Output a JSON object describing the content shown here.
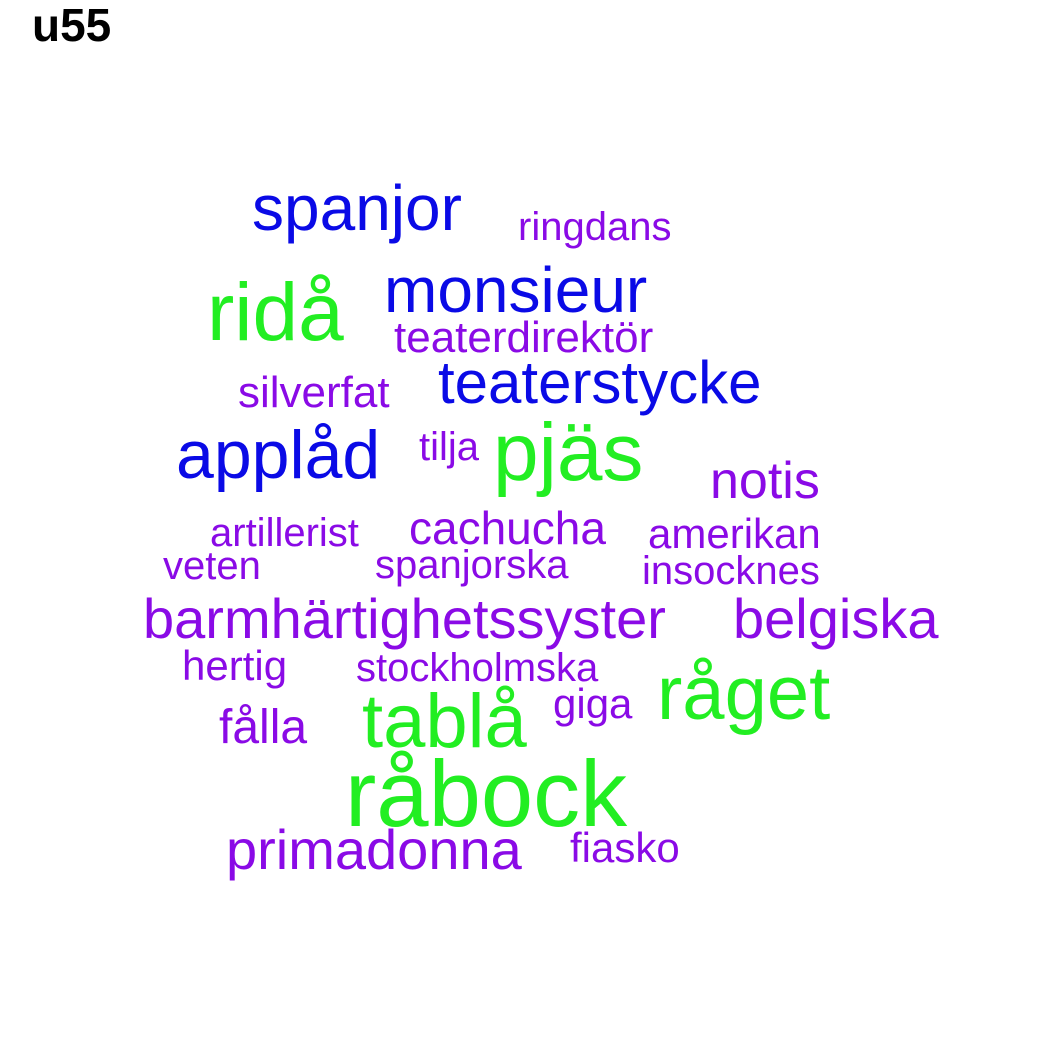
{
  "title": "u55",
  "colors": {
    "green": "#22ee22",
    "blue": "#0a0ae6",
    "purple": "#8a0ae6",
    "background": "#ffffff",
    "title": "#000000"
  },
  "words": [
    {
      "text": "spanjor",
      "color": "blue"
    },
    {
      "text": "ringdans",
      "color": "purple"
    },
    {
      "text": "ridå",
      "color": "green"
    },
    {
      "text": "monsieur",
      "color": "blue"
    },
    {
      "text": "teaterdirektör",
      "color": "purple"
    },
    {
      "text": "silverfat",
      "color": "purple"
    },
    {
      "text": "teaterstycke",
      "color": "blue"
    },
    {
      "text": "applåd",
      "color": "blue"
    },
    {
      "text": "tilja",
      "color": "purple"
    },
    {
      "text": "pjäs",
      "color": "green"
    },
    {
      "text": "notis",
      "color": "purple"
    },
    {
      "text": "artillerist",
      "color": "purple"
    },
    {
      "text": "cachucha",
      "color": "purple"
    },
    {
      "text": "amerikan",
      "color": "purple"
    },
    {
      "text": "veten",
      "color": "purple"
    },
    {
      "text": "spanjorska",
      "color": "purple"
    },
    {
      "text": "insocknes",
      "color": "purple"
    },
    {
      "text": "barmhärtighetssyster",
      "color": "purple"
    },
    {
      "text": "belgiska",
      "color": "purple"
    },
    {
      "text": "hertig",
      "color": "purple"
    },
    {
      "text": "stockholmska",
      "color": "purple"
    },
    {
      "text": "råget",
      "color": "green"
    },
    {
      "text": "giga",
      "color": "purple"
    },
    {
      "text": "fålla",
      "color": "purple"
    },
    {
      "text": "tablå",
      "color": "green"
    },
    {
      "text": "råbock",
      "color": "green"
    },
    {
      "text": "primadonna",
      "color": "purple"
    },
    {
      "text": "fiasko",
      "color": "purple"
    }
  ]
}
